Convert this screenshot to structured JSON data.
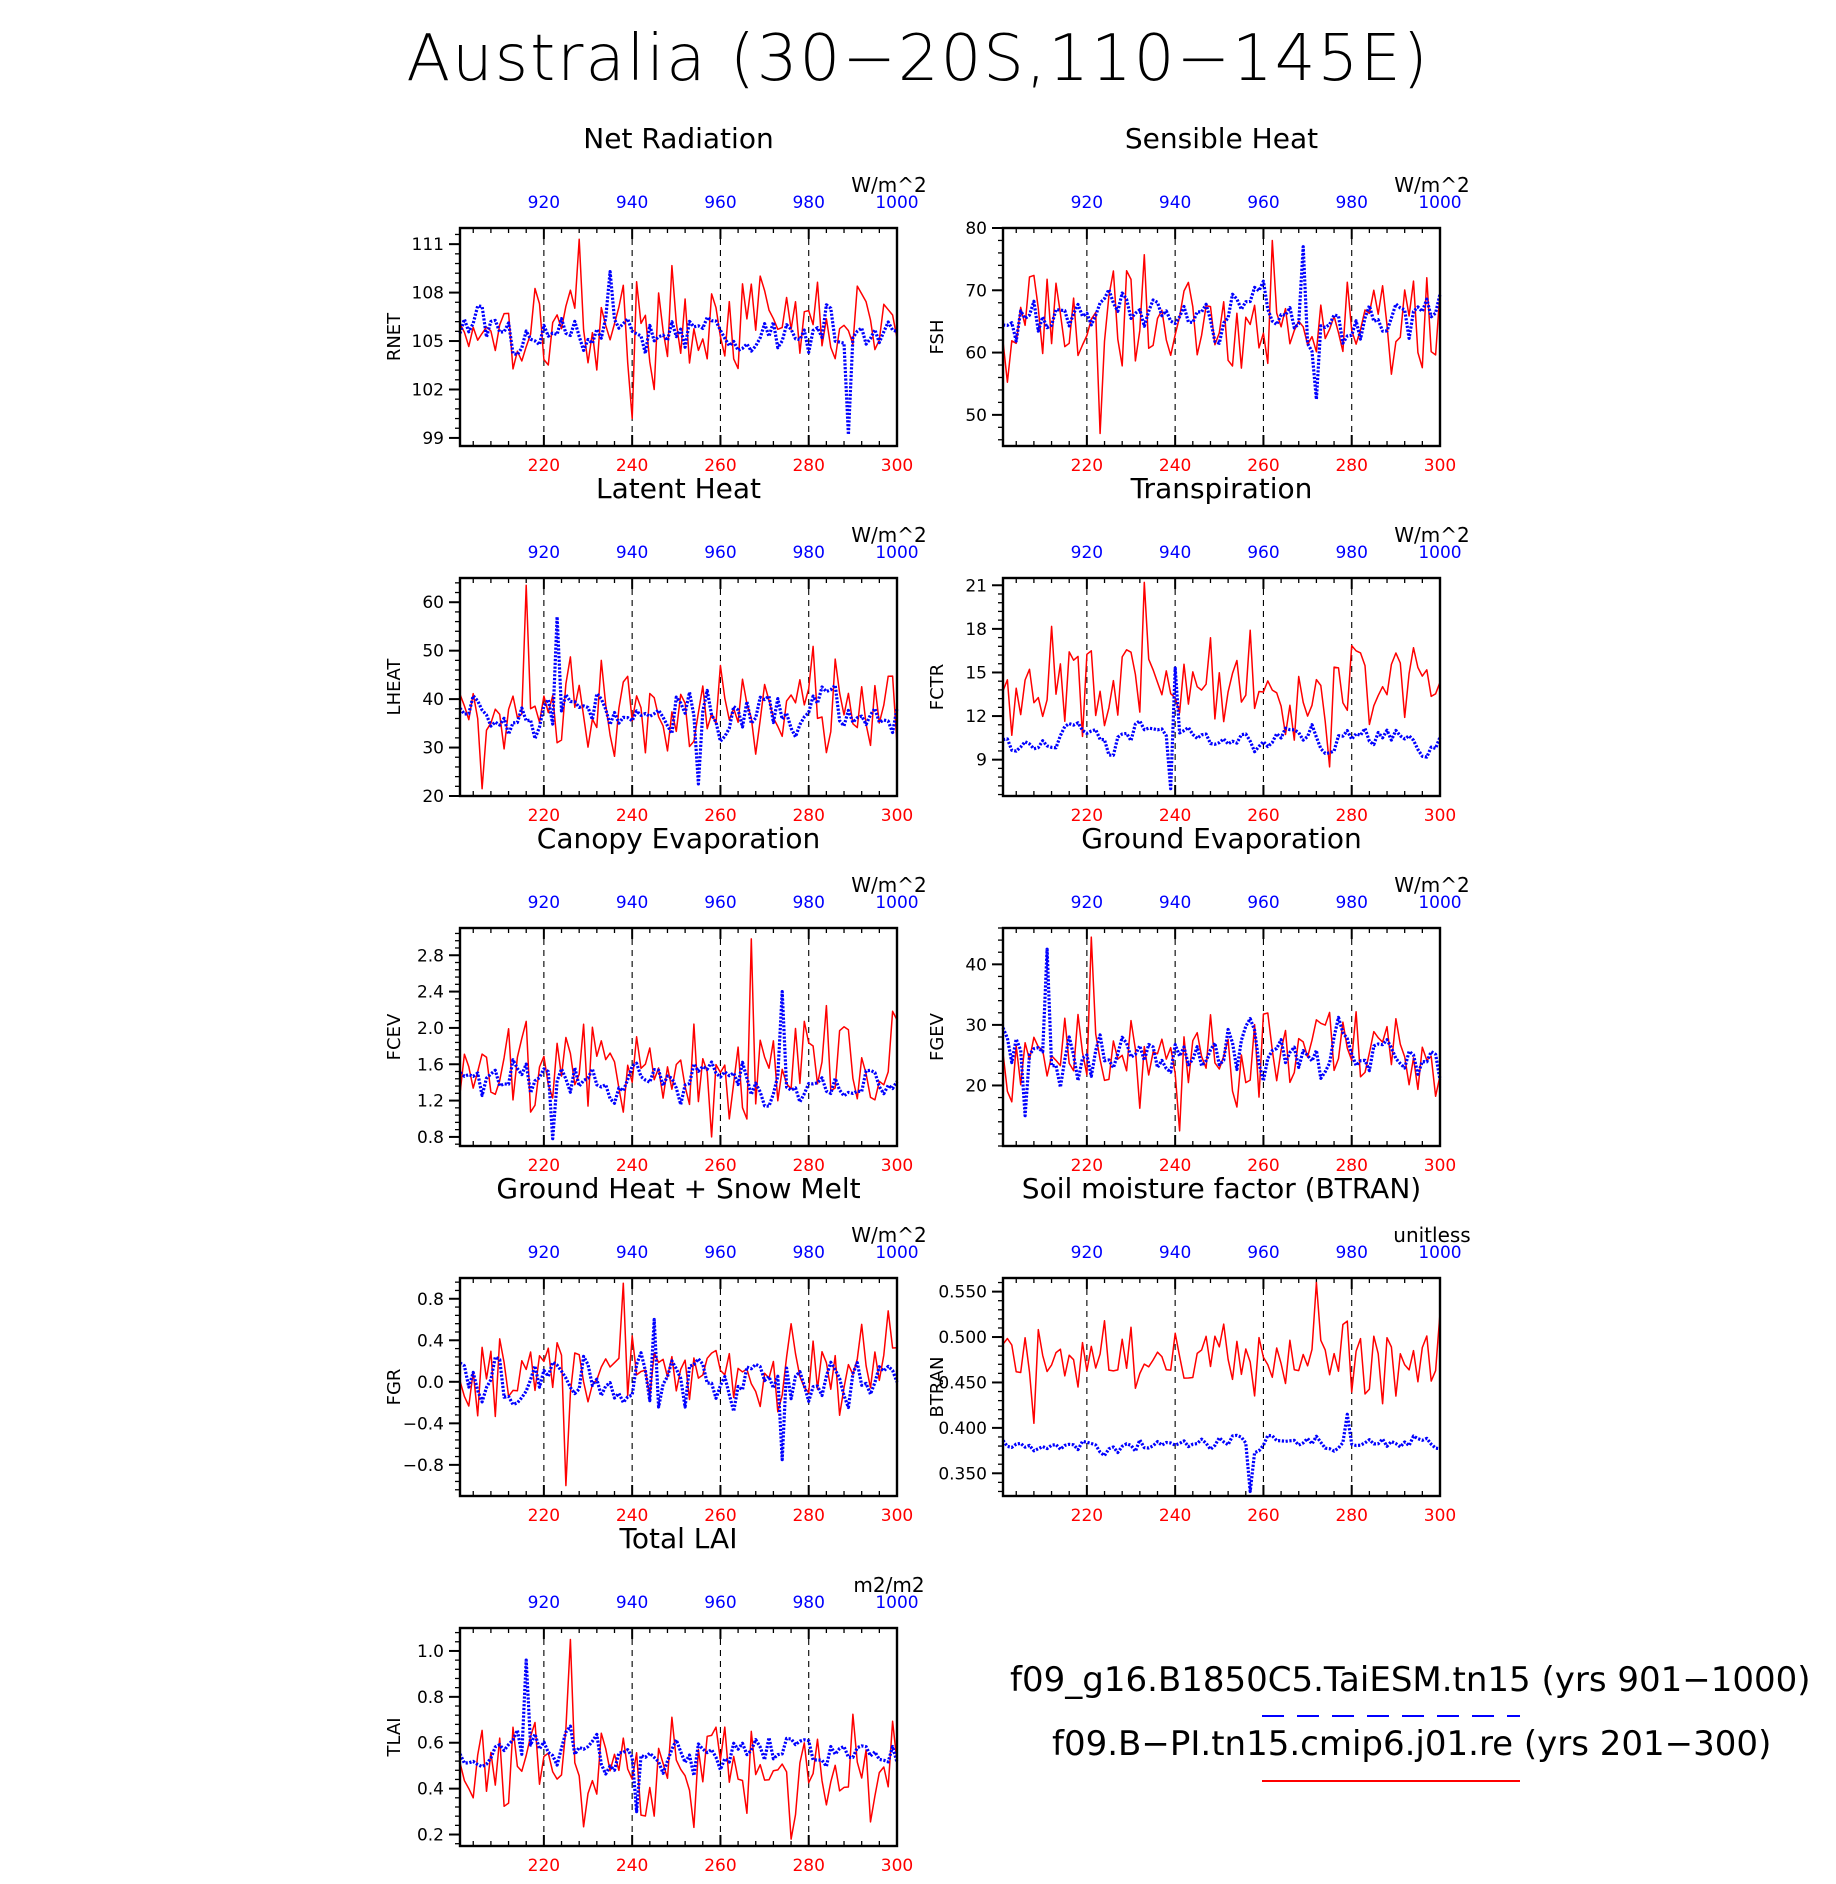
{
  "title": "Australia (30−20S,110−145E)",
  "colors": {
    "red_series": "#ff0000",
    "blue_series": "#0000ff",
    "axis": "#000000"
  },
  "axes_common": {
    "x_bottom": {
      "range": [
        201,
        300
      ],
      "ticks": [
        220,
        240,
        260,
        280,
        300
      ],
      "color": "#ff0000"
    },
    "x_top": {
      "range": [
        901,
        1000
      ],
      "ticks": [
        920,
        940,
        960,
        980,
        1000
      ],
      "color": "#0000ff"
    },
    "vertical_dashed_gridlines_at": [
      220,
      240,
      260,
      280
    ]
  },
  "legend": {
    "entries": [
      {
        "label": "f09_g16.B1850C5.TaiESM.tn15 (yrs 901−1000)",
        "style": "dashed",
        "color": "#0000ff"
      },
      {
        "label": "f09.B−PI.tn15.cmip6.j01.re (yrs 201−300)",
        "style": "solid",
        "color": "#ff0000"
      }
    ]
  },
  "chart_data": [
    {
      "type": "line",
      "title": "Net Radiation",
      "ylabel": "RNET",
      "units": "W/m^2",
      "ylim": [
        98.5,
        112
      ],
      "yticks": [
        99,
        102,
        105,
        108,
        111
      ],
      "yticklabels": [
        "99",
        "102",
        "105",
        "108",
        "111"
      ],
      "series": [
        {
          "key": "red",
          "mean": 106,
          "amp": 2.2,
          "min": 100.2,
          "max": 111.3
        },
        {
          "key": "blue",
          "mean": 105.5,
          "amp": 1.8,
          "min": 99.2,
          "max": 109.3
        }
      ]
    },
    {
      "type": "line",
      "title": "Sensible Heat",
      "ylabel": "FSH",
      "units": "W/m^2",
      "ylim": [
        45,
        80
      ],
      "yticks": [
        50,
        60,
        70,
        80
      ],
      "yticklabels": [
        "50",
        "60",
        "70",
        "80"
      ],
      "series": [
        {
          "key": "red",
          "mean": 65,
          "amp": 7,
          "min": 47,
          "max": 78
        },
        {
          "key": "blue",
          "mean": 66,
          "amp": 5.5,
          "min": 52.5,
          "max": 77
        }
      ]
    },
    {
      "type": "line",
      "title": "Latent Heat",
      "ylabel": "LHEAT",
      "units": "W/m^2",
      "ylim": [
        20,
        65
      ],
      "yticks": [
        20,
        30,
        40,
        50,
        60
      ],
      "yticklabels": [
        "20",
        "30",
        "40",
        "50",
        "60"
      ],
      "series": [
        {
          "key": "red",
          "mean": 38,
          "amp": 8,
          "min": 21.5,
          "max": 63.5
        },
        {
          "key": "blue",
          "mean": 37,
          "amp": 6.5,
          "min": 22.5,
          "max": 57
        }
      ]
    },
    {
      "type": "line",
      "title": "Transpiration",
      "ylabel": "FCTR",
      "units": "W/m^2",
      "ylim": [
        6.5,
        21.5
      ],
      "yticks": [
        9,
        12,
        15,
        18,
        21
      ],
      "yticklabels": [
        "9",
        "12",
        "15",
        "18",
        "21"
      ],
      "series": [
        {
          "key": "red",
          "mean": 14,
          "amp": 2.3,
          "min": 8.5,
          "max": 21.2
        },
        {
          "key": "blue",
          "mean": 10.5,
          "amp": 1.3,
          "min": 7,
          "max": 15.3
        }
      ]
    },
    {
      "type": "line",
      "title": "Canopy Evaporation",
      "ylabel": "FCEV",
      "units": "W/m^2",
      "ylim": [
        0.7,
        3.1
      ],
      "yticks": [
        0.8,
        1.2,
        1.6,
        2.0,
        2.4,
        2.8
      ],
      "yticklabels": [
        "0.8",
        "1.2",
        "1.6",
        "2.0",
        "2.4",
        "2.8"
      ],
      "series": [
        {
          "key": "red",
          "mean": 1.55,
          "amp": 0.45,
          "min": 0.8,
          "max": 2.98
        },
        {
          "key": "blue",
          "mean": 1.4,
          "amp": 0.3,
          "min": 0.78,
          "max": 2.4
        }
      ]
    },
    {
      "type": "line",
      "title": "Ground Evaporation",
      "ylabel": "FGEV",
      "units": "W/m^2",
      "ylim": [
        10,
        46
      ],
      "yticks": [
        20,
        30,
        40
      ],
      "yticklabels": [
        "20",
        "30",
        "40"
      ],
      "series": [
        {
          "key": "red",
          "mean": 24,
          "amp": 6,
          "min": 12.5,
          "max": 44.5
        },
        {
          "key": "blue",
          "mean": 25,
          "amp": 5.5,
          "min": 15,
          "max": 42.5
        }
      ]
    },
    {
      "type": "line",
      "title": "Ground Heat + Snow Melt",
      "ylabel": "FGR",
      "units": "W/m^2",
      "ylim": [
        -1.1,
        1.0
      ],
      "yticks": [
        -0.8,
        -0.4,
        0.0,
        0.4,
        0.8
      ],
      "yticklabels": [
        "−0.8",
        "−0.4",
        "0.0",
        "0.4",
        "0.8"
      ],
      "series": [
        {
          "key": "red",
          "mean": 0.1,
          "amp": 0.35,
          "min": -1.0,
          "max": 0.95
        },
        {
          "key": "blue",
          "mean": 0.0,
          "amp": 0.33,
          "min": -0.75,
          "max": 0.6
        }
      ]
    },
    {
      "type": "line",
      "title": "Soil moisture factor (BTRAN)",
      "ylabel": "BTRAN",
      "units": "unitless",
      "ylim": [
        0.325,
        0.565
      ],
      "yticks": [
        0.35,
        0.4,
        0.45,
        0.5,
        0.55
      ],
      "yticklabels": [
        "0.350",
        "0.400",
        "0.450",
        "0.500",
        "0.550"
      ],
      "series": [
        {
          "key": "red",
          "mean": 0.475,
          "amp": 0.03,
          "min": 0.405,
          "max": 0.56
        },
        {
          "key": "blue",
          "mean": 0.383,
          "amp": 0.011,
          "min": 0.33,
          "max": 0.415
        }
      ]
    },
    {
      "type": "line",
      "title": "Total LAI",
      "ylabel": "TLAI",
      "units": "m2/m2",
      "ylim": [
        0.15,
        1.1
      ],
      "yticks": [
        0.2,
        0.4,
        0.6,
        0.8,
        1.0
      ],
      "yticklabels": [
        "0.2",
        "0.4",
        "0.6",
        "0.8",
        "1.0"
      ],
      "series": [
        {
          "key": "red",
          "mean": 0.5,
          "amp": 0.16,
          "min": 0.18,
          "max": 1.05
        },
        {
          "key": "blue",
          "mean": 0.55,
          "amp": 0.11,
          "min": 0.3,
          "max": 0.96
        }
      ]
    }
  ]
}
